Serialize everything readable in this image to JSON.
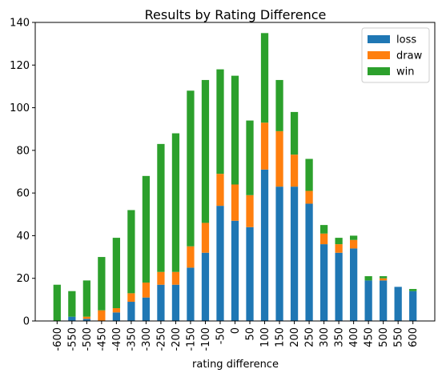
{
  "chart_data": {
    "type": "bar",
    "stacked": true,
    "title": "Results by Rating Difference",
    "xlabel": "rating difference",
    "ylabel": "",
    "ylim": [
      0,
      140
    ],
    "yticks": [
      0,
      20,
      40,
      60,
      80,
      100,
      120,
      140
    ],
    "grid": false,
    "legend_position": "top-right",
    "categories": [
      "-600",
      "-550",
      "-500",
      "-450",
      "-400",
      "-350",
      "-300",
      "-250",
      "-200",
      "-150",
      "-100",
      "-50",
      "0",
      "50",
      "100",
      "150",
      "200",
      "250",
      "300",
      "350",
      "400",
      "450",
      "500",
      "550",
      "600"
    ],
    "series": [
      {
        "name": "loss",
        "color": "#1f77b4",
        "values": [
          0,
          2,
          1,
          0,
          4,
          9,
          11,
          17,
          17,
          25,
          32,
          54,
          47,
          44,
          71,
          63,
          63,
          55,
          36,
          32,
          34,
          19,
          19,
          16,
          14
        ]
      },
      {
        "name": "draw",
        "color": "#ff7f0e",
        "values": [
          0,
          0,
          1,
          5,
          2,
          4,
          7,
          6,
          6,
          10,
          14,
          15,
          17,
          15,
          22,
          26,
          15,
          6,
          5,
          4,
          4,
          0,
          1,
          0,
          0
        ]
      },
      {
        "name": "win",
        "color": "#2ca02c",
        "values": [
          17,
          12,
          17,
          25,
          33,
          39,
          50,
          60,
          65,
          73,
          67,
          49,
          51,
          35,
          42,
          24,
          20,
          15,
          4,
          3,
          2,
          2,
          1,
          0,
          1
        ]
      }
    ]
  }
}
